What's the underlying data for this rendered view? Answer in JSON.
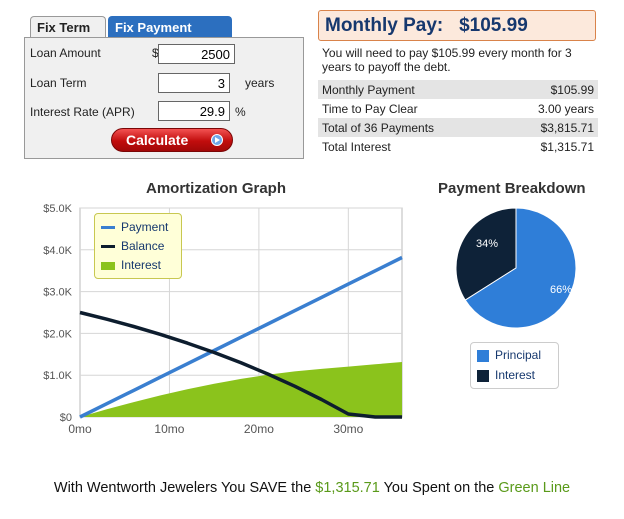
{
  "calculator": {
    "tabs": [
      {
        "label": "Fix Term",
        "active": true
      },
      {
        "label": "Fix Payment",
        "active": false
      }
    ],
    "loan_amount": {
      "label": "Loan Amount",
      "currency": "$",
      "value": "2500"
    },
    "loan_term": {
      "label": "Loan Term",
      "value": "3",
      "unit": "years"
    },
    "interest_rate": {
      "label": "Interest Rate (APR)",
      "value": "29.9",
      "unit": "%"
    },
    "calculate_label": "Calculate"
  },
  "summary": {
    "header_label": "Monthly Pay:",
    "header_value": "$105.99",
    "description": "You will need to pay $105.99 every month for 3 years to payoff the debt.",
    "rows": [
      {
        "label": "Monthly Payment",
        "value": "$105.99"
      },
      {
        "label": "Time to Pay Clear",
        "value": "3.00 years"
      },
      {
        "label": "Total of 36 Payments",
        "value": "$3,815.71"
      },
      {
        "label": "Total Interest",
        "value": "$1,315.71"
      }
    ]
  },
  "footer": {
    "prefix": "With Wentworth Jewelers You SAVE the",
    "amount": "$1,315.71",
    "middle": "You Spent on the",
    "line_name": "Green Line"
  },
  "colors": {
    "payment": "#3a7fd0",
    "balance": "#0d1d2e",
    "interest": "#8bc31c",
    "principal": "#2f7ed8",
    "pie_interest": "#0e2238",
    "tab_blue": "#2c6fbf",
    "title_navy": "#16386e"
  },
  "chart_data": [
    {
      "type": "line",
      "title": "Amortization Graph",
      "x_ticks": [
        "0mo",
        "10mo",
        "20mo",
        "30mo"
      ],
      "y_ticks": [
        "$0",
        "$1.0K",
        "$2.0K",
        "$3.0K",
        "$4.0K",
        "$5.0K"
      ],
      "xlim": [
        0,
        36
      ],
      "ylim": [
        0,
        5000
      ],
      "grid": true,
      "legend_position": "top-left",
      "x": [
        0,
        3,
        6,
        9,
        12,
        15,
        18,
        21,
        24,
        27,
        30,
        33,
        36
      ],
      "series": [
        {
          "name": "Payment",
          "style": "line",
          "color": "#3a7fd0",
          "values": [
            0,
            318,
            636,
            954,
            1272,
            1590,
            1908,
            2226,
            2544,
            2862,
            3180,
            3498,
            3816
          ]
        },
        {
          "name": "Balance",
          "style": "line",
          "color": "#0d1d2e",
          "values": [
            2500,
            2340,
            2165,
            1975,
            1768,
            1542,
            1296,
            1028,
            736,
            418,
            71,
            -270,
            0
          ]
        },
        {
          "name": "Interest",
          "style": "area",
          "color": "#8bc31c",
          "values": [
            0,
            184,
            357,
            517,
            664,
            795,
            912,
            1010,
            1090,
            1150,
            1205,
            1260,
            1316
          ]
        }
      ]
    },
    {
      "type": "pie",
      "title": "Payment Breakdown",
      "slices": [
        {
          "name": "Principal",
          "value": 66,
          "label": "66%",
          "color": "#2f7ed8"
        },
        {
          "name": "Interest",
          "value": 34,
          "label": "34%",
          "color": "#0e2238"
        }
      ],
      "legend_position": "bottom"
    }
  ]
}
